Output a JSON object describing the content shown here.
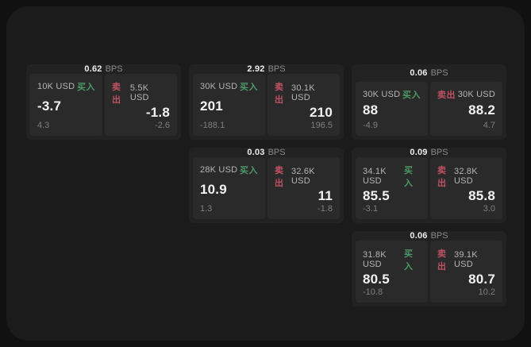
{
  "labels": {
    "bps": "BPS",
    "buy": "买入",
    "sell": "卖出"
  },
  "colors": {
    "page_bg": "#111112",
    "panel_bg": "#1b1b1c",
    "card_bg": "#222223",
    "tile_bg": "#2a2a2b",
    "buy_green": "#4c9a66",
    "sell_red": "#bf5262",
    "price_text": "#f2f2f2",
    "muted_text": "#7f7f7f"
  },
  "cards": [
    {
      "bps": "0.62",
      "buy": {
        "amount": "10K USD",
        "price": "-3.7",
        "delta": "4.3"
      },
      "sell": {
        "amount": "5.5K USD",
        "price": "-1.8",
        "delta": "-2.6"
      }
    },
    {
      "bps": "2.92",
      "buy": {
        "amount": "30K USD",
        "price": "201",
        "delta": "-188.1"
      },
      "sell": {
        "amount": "30.1K USD",
        "price": "210",
        "delta": "196.5"
      }
    },
    {
      "bps": "0.06",
      "buy": {
        "amount": "30K USD",
        "price": "88",
        "delta": "-4.9"
      },
      "sell": {
        "amount": "30K USD",
        "price": "88.2",
        "delta": "4.7"
      }
    },
    {
      "bps": "0.03",
      "buy": {
        "amount": "28K USD",
        "price": "10.9",
        "delta": "1.3"
      },
      "sell": {
        "amount": "32.6K USD",
        "price": "11",
        "delta": "-1.8"
      }
    },
    {
      "bps": "0.09",
      "buy": {
        "amount": "34.1K USD",
        "price": "85.5",
        "delta": "-3.1"
      },
      "sell": {
        "amount": "32.8K USD",
        "price": "85.8",
        "delta": "3.0"
      }
    },
    {
      "bps": "0.06",
      "buy": {
        "amount": "31.8K USD",
        "price": "80.5",
        "delta": "-10.8"
      },
      "sell": {
        "amount": "39.1K USD",
        "price": "80.7",
        "delta": "10.2"
      }
    }
  ]
}
